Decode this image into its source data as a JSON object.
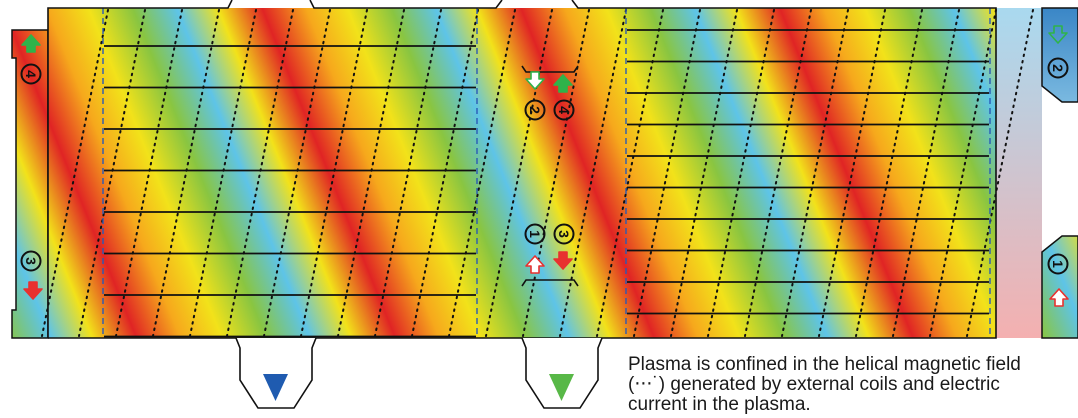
{
  "caption": {
    "line1": "Plasma is confined in the helical magnetic field",
    "line2": "(⋅⋅⋅˙) generated by external coils and electric",
    "line3": "current in the plasma."
  },
  "markers": {
    "one": "1",
    "two": "2",
    "three": "3",
    "four": "4"
  },
  "colors": {
    "arrow_green": "#2fb34a",
    "arrow_red": "#e8312f",
    "tab_blue": "#1f5bb0",
    "tab_green": "#58b847",
    "dashed_line": "#2a5ab5"
  }
}
